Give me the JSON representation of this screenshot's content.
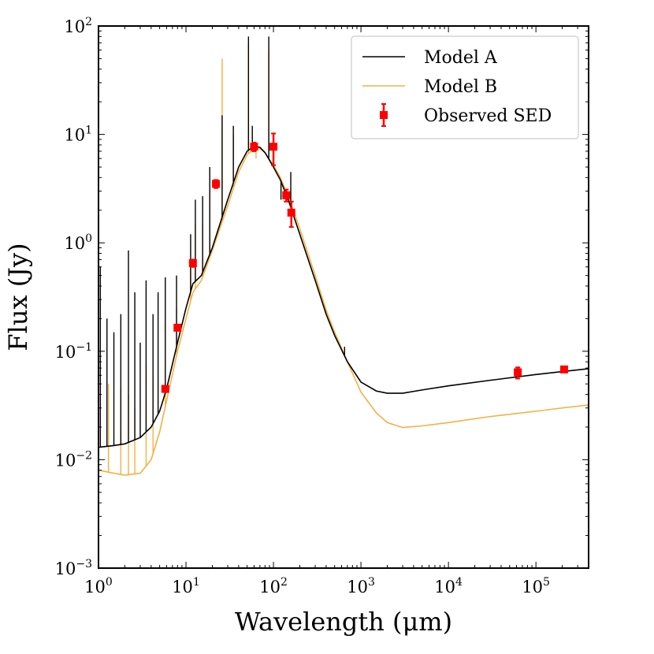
{
  "chart_data": {
    "type": "line",
    "xlabel": "Wavelength (μm)",
    "ylabel": "Flux (Jy)",
    "xscale": "log",
    "yscale": "log",
    "xlim": [
      1,
      400000
    ],
    "ylim": [
      0.001,
      100
    ],
    "x_ticks": [
      {
        "base": "10",
        "exp": "0",
        "value": 1
      },
      {
        "base": "10",
        "exp": "1",
        "value": 10
      },
      {
        "base": "10",
        "exp": "2",
        "value": 100
      },
      {
        "base": "10",
        "exp": "3",
        "value": 1000
      },
      {
        "base": "10",
        "exp": "4",
        "value": 10000
      },
      {
        "base": "10",
        "exp": "5",
        "value": 100000
      }
    ],
    "y_ticks": [
      {
        "base": "10",
        "exp": "−3",
        "value": 0.001
      },
      {
        "base": "10",
        "exp": "−2",
        "value": 0.01
      },
      {
        "base": "10",
        "exp": "−1",
        "value": 0.1
      },
      {
        "base": "10",
        "exp": "0",
        "value": 1
      },
      {
        "base": "10",
        "exp": "1",
        "value": 10
      },
      {
        "base": "10",
        "exp": "2",
        "value": 100
      }
    ],
    "legend": {
      "location": "top-right",
      "entries": [
        {
          "label": "Model A",
          "kind": "line",
          "color": "#000000"
        },
        {
          "label": "Model B",
          "kind": "line",
          "color": "#f5b041"
        },
        {
          "label": "Observed SED",
          "kind": "errorbar",
          "color": "#ff0000"
        }
      ]
    },
    "series": [
      {
        "name": "Model A",
        "color": "#000000",
        "points": [
          [
            1,
            0.013
          ],
          [
            1.5,
            0.0135
          ],
          [
            2,
            0.014
          ],
          [
            3,
            0.016
          ],
          [
            4,
            0.02
          ],
          [
            5,
            0.028
          ],
          [
            6,
            0.045
          ],
          [
            8,
            0.12
          ],
          [
            10,
            0.25
          ],
          [
            12,
            0.42
          ],
          [
            15,
            0.5
          ],
          [
            20,
            0.9
          ],
          [
            30,
            2.5
          ],
          [
            40,
            5.0
          ],
          [
            50,
            7.0
          ],
          [
            60,
            7.8
          ],
          [
            70,
            7.6
          ],
          [
            80,
            6.8
          ],
          [
            100,
            5.0
          ],
          [
            120,
            3.8
          ],
          [
            150,
            2.4
          ],
          [
            200,
            1.2
          ],
          [
            300,
            0.45
          ],
          [
            400,
            0.22
          ],
          [
            500,
            0.14
          ],
          [
            700,
            0.08
          ],
          [
            1000,
            0.052
          ],
          [
            1500,
            0.043
          ],
          [
            2000,
            0.041
          ],
          [
            3000,
            0.041
          ],
          [
            5000,
            0.044
          ],
          [
            10000,
            0.048
          ],
          [
            30000,
            0.054
          ],
          [
            100000,
            0.061
          ],
          [
            200000,
            0.065
          ],
          [
            400000,
            0.069
          ]
        ],
        "spikes": [
          [
            1.05,
            0.6
          ],
          [
            1.25,
            0.2
          ],
          [
            1.5,
            0.15
          ],
          [
            1.8,
            0.22
          ],
          [
            2.2,
            0.85
          ],
          [
            2.6,
            0.35
          ],
          [
            3.0,
            0.12
          ],
          [
            3.5,
            0.45
          ],
          [
            4.2,
            0.22
          ],
          [
            4.8,
            0.35
          ],
          [
            5.8,
            0.48
          ],
          [
            7.8,
            0.5
          ],
          [
            11.3,
            1.2
          ],
          [
            12.8,
            2.5
          ],
          [
            15.5,
            2.7
          ],
          [
            18.7,
            5.0
          ],
          [
            25.9,
            15
          ],
          [
            34.8,
            12
          ],
          [
            51.8,
            80
          ],
          [
            57.3,
            12
          ],
          [
            63.2,
            8
          ],
          [
            88.4,
            80
          ],
          [
            121.9,
            2.5
          ],
          [
            157.7,
            4.5
          ],
          [
            650,
            0.11
          ]
        ]
      },
      {
        "name": "Model B",
        "color": "#f5b041",
        "points": [
          [
            1,
            0.008
          ],
          [
            1.5,
            0.0075
          ],
          [
            2,
            0.0072
          ],
          [
            3,
            0.0075
          ],
          [
            4,
            0.01
          ],
          [
            5,
            0.018
          ],
          [
            6,
            0.035
          ],
          [
            8,
            0.1
          ],
          [
            10,
            0.2
          ],
          [
            12,
            0.35
          ],
          [
            15,
            0.45
          ],
          [
            20,
            0.85
          ],
          [
            30,
            2.2
          ],
          [
            40,
            4.5
          ],
          [
            50,
            6.5
          ],
          [
            60,
            7.4
          ],
          [
            70,
            7.4
          ],
          [
            80,
            6.8
          ],
          [
            100,
            5.2
          ],
          [
            120,
            4.0
          ],
          [
            150,
            2.6
          ],
          [
            200,
            1.35
          ],
          [
            300,
            0.5
          ],
          [
            400,
            0.24
          ],
          [
            500,
            0.15
          ],
          [
            700,
            0.08
          ],
          [
            1000,
            0.042
          ],
          [
            1500,
            0.027
          ],
          [
            2000,
            0.022
          ],
          [
            3000,
            0.0198
          ],
          [
            5000,
            0.0205
          ],
          [
            10000,
            0.022
          ],
          [
            30000,
            0.025
          ],
          [
            100000,
            0.028
          ],
          [
            200000,
            0.03
          ],
          [
            400000,
            0.032
          ]
        ],
        "spikes": [
          [
            1.3,
            0.05
          ],
          [
            1.8,
            0.045
          ],
          [
            2.2,
            0.04
          ],
          [
            2.6,
            0.03
          ],
          [
            3.5,
            0.08
          ],
          [
            4.2,
            0.06
          ],
          [
            5.8,
            0.2
          ],
          [
            7.8,
            0.25
          ],
          [
            11.3,
            0.7
          ],
          [
            12.8,
            1.5
          ],
          [
            15.5,
            1.5
          ],
          [
            18.7,
            3.0
          ],
          [
            25.9,
            50
          ],
          [
            34.8,
            10
          ],
          [
            51.8,
            70
          ],
          [
            63.2,
            6
          ],
          [
            88.4,
            60
          ],
          [
            157.7,
            3.0
          ]
        ]
      }
    ],
    "observed_sed": {
      "name": "Observed SED",
      "color": "#ff0000",
      "points": [
        {
          "x": 5.8,
          "y": 0.045,
          "ylo": 0.042,
          "yhi": 0.048
        },
        {
          "x": 8,
          "y": 0.165,
          "ylo": 0.155,
          "yhi": 0.175
        },
        {
          "x": 12,
          "y": 0.65,
          "ylo": 0.6,
          "yhi": 0.7
        },
        {
          "x": 22,
          "y": 3.5,
          "ylo": 3.2,
          "yhi": 3.8
        },
        {
          "x": 60,
          "y": 7.7,
          "ylo": 7.0,
          "yhi": 8.4
        },
        {
          "x": 100,
          "y": 7.7,
          "ylo": 5.2,
          "yhi": 10.2
        },
        {
          "x": 140,
          "y": 2.75,
          "ylo": 2.4,
          "yhi": 3.1
        },
        {
          "x": 160,
          "y": 1.9,
          "ylo": 1.4,
          "yhi": 2.4
        },
        {
          "x": 62000,
          "y": 0.064,
          "ylo": 0.056,
          "yhi": 0.071
        },
        {
          "x": 210000,
          "y": 0.068,
          "ylo": 0.065,
          "yhi": 0.071
        }
      ]
    }
  }
}
